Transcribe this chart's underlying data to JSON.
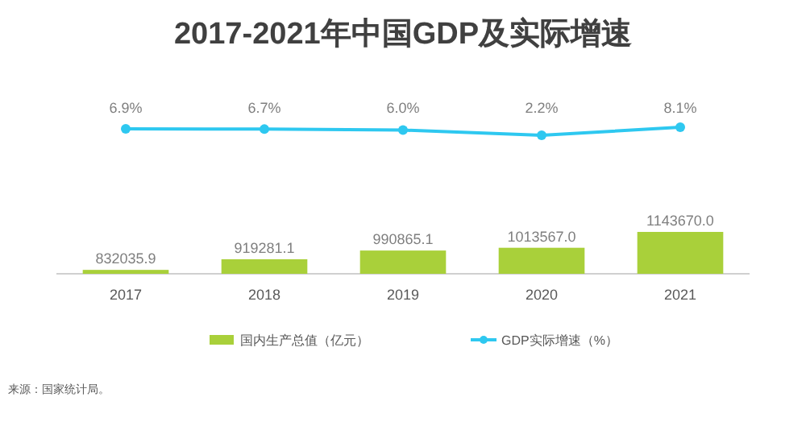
{
  "chart_data": [
    {
      "type": "line",
      "title": "2017-2021年中国GDP及实际增速",
      "categories": [
        null,
        null,
        null,
        null,
        null
      ],
      "legend": "bottom",
      "marker": "circle",
      "series": [
        {
          "name": "GDP实际增速（%）",
          "color": "#2ec8f0",
          "values": [
            6.9,
            6.7,
            6.0,
            2.2,
            8.1
          ],
          "value_labels": [
            "6.9%",
            "6.7%",
            "6.0%",
            "2.2%",
            "8.1%"
          ]
        }
      ]
    },
    {
      "type": "bar",
      "categories": [
        "2017",
        "2018",
        "2019",
        "2020",
        "2021"
      ],
      "tick_labels": "x",
      "legend": "bottom",
      "ylim": [
        800000,
        1143670
      ],
      "series": [
        {
          "name": "国内生产总值（亿元）",
          "color": "#a9d03a",
          "values": [
            832035.9,
            919281.1,
            990865.1,
            1013567.0,
            1143670.0
          ],
          "value_labels": [
            "832035.9",
            "919281.1",
            "990865.1",
            "1013567.0",
            "1143670.0"
          ]
        }
      ],
      "annotations": [
        "来源：国家统计局。"
      ]
    }
  ]
}
